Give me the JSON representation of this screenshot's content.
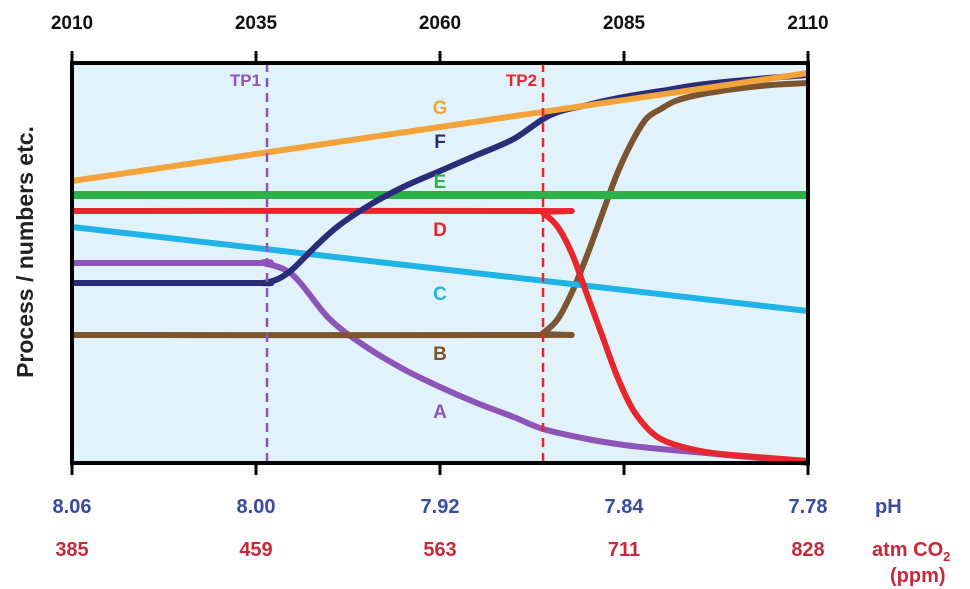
{
  "chart_data": {
    "type": "line",
    "ylabel": "Process / numbers etc.",
    "x_top": {
      "ticks": [
        "2010",
        "2035",
        "2060",
        "2085",
        "2110"
      ],
      "range": [
        2010,
        2110
      ]
    },
    "ph_axis": {
      "label": "pH",
      "ticks": [
        "8.06",
        "8.00",
        "7.92",
        "7.84",
        "7.78"
      ]
    },
    "co2_axis": {
      "label_main": "atm CO",
      "label_sub": "2",
      "label_unit": "(ppm)",
      "ticks": [
        "385",
        "459",
        "563",
        "711",
        "828"
      ]
    },
    "ylim": [
      0,
      100
    ],
    "thresholds": [
      {
        "name": "TP1",
        "x": 2036.5,
        "color": "#8e55b8"
      },
      {
        "name": "TP2",
        "x": 2074,
        "color": "#e8262e"
      }
    ],
    "series": [
      {
        "name": "A",
        "color": "#8e55b8",
        "x": [
          2010,
          2035,
          2036,
          2040,
          2045,
          2050,
          2055,
          2060,
          2065,
          2070,
          2074,
          2080,
          2085,
          2090,
          2095,
          2100,
          2105,
          2110
        ],
        "values": [
          50,
          50,
          50,
          47,
          36,
          29,
          23.5,
          19,
          15,
          11.5,
          8.5,
          6,
          4.5,
          3.5,
          2.7,
          1.8,
          1,
          0
        ]
      },
      {
        "name": "B",
        "color": "#7a5530",
        "x": [
          2010,
          2073,
          2074,
          2076,
          2078,
          2080,
          2082,
          2084,
          2086,
          2088,
          2090,
          2092,
          2095,
          2100,
          2105,
          2110
        ],
        "values": [
          32,
          32,
          32.5,
          36,
          43,
          52,
          62,
          72,
          80,
          86,
          88.5,
          90.5,
          92,
          93.5,
          94.5,
          95
        ]
      },
      {
        "name": "C",
        "color": "#1eb4e8",
        "x": [
          2010,
          2110
        ],
        "values": [
          59,
          38
        ]
      },
      {
        "name": "D",
        "color": "#e8262e",
        "x": [
          2010,
          2073,
          2074,
          2076,
          2078,
          2080,
          2082,
          2084,
          2086,
          2088,
          2090,
          2093,
          2097,
          2103,
          2110
        ],
        "values": [
          63,
          63,
          62.5,
          59,
          52,
          42,
          32,
          22,
          14,
          9,
          6,
          4,
          2.5,
          1.5,
          0.5
        ]
      },
      {
        "name": "E",
        "color": "#2db24a",
        "x": [
          2010,
          2110
        ],
        "values": [
          67,
          67
        ]
      },
      {
        "name": "F",
        "color": "#2a2c78",
        "x": [
          2010,
          2035,
          2036,
          2038,
          2040,
          2043,
          2046,
          2050,
          2055,
          2060,
          2065,
          2070,
          2075,
          2080,
          2085,
          2090,
          2095,
          2100,
          2105,
          2110
        ],
        "values": [
          45,
          45,
          45,
          46,
          48.5,
          54,
          59,
          64,
          69,
          73,
          77,
          81,
          87,
          89.5,
          91.5,
          93,
          94.5,
          95.5,
          96.3,
          97
        ]
      },
      {
        "name": "G",
        "color": "#f4a23a",
        "x": [
          2010,
          2110
        ],
        "values": [
          70.5,
          97.5
        ]
      }
    ],
    "series_labels": [
      {
        "name": "G",
        "x": 2060,
        "y": 88.5
      },
      {
        "name": "F",
        "x": 2060,
        "y": 80
      },
      {
        "name": "E",
        "x": 2060,
        "y": 70
      },
      {
        "name": "D",
        "x": 2060,
        "y": 58
      },
      {
        "name": "C",
        "x": 2060,
        "y": 42
      },
      {
        "name": "B",
        "x": 2060,
        "y": 27
      },
      {
        "name": "A",
        "x": 2060,
        "y": 12.5
      }
    ]
  }
}
